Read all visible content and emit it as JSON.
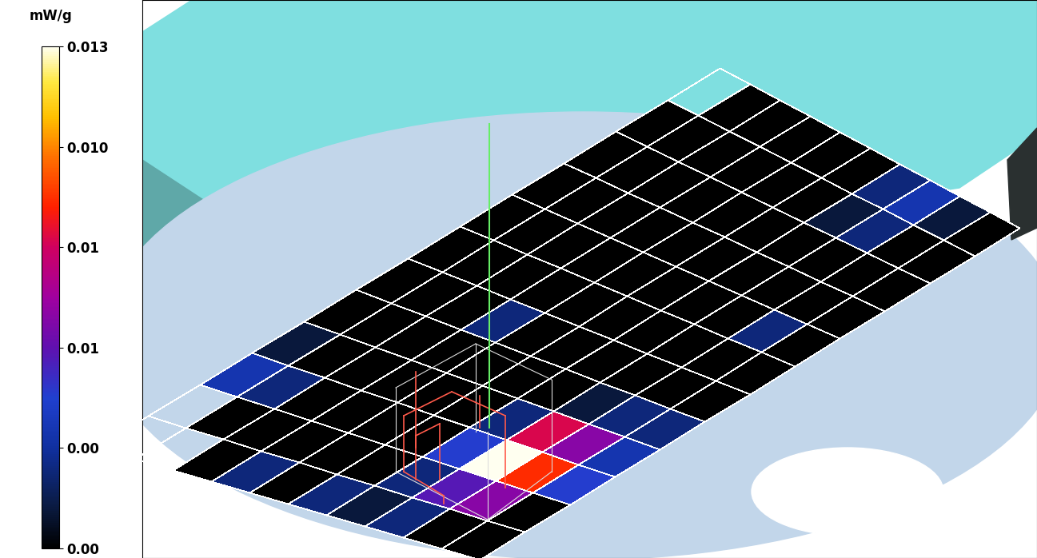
{
  "chart_data": {
    "type": "heatmap",
    "tick_labels": false,
    "cells": [
      [
        0,
        0,
        0.004,
        0.003,
        0.002,
        0,
        0,
        0,
        0,
        0,
        0,
        0
      ],
      [
        0,
        0.006,
        0.009,
        0.006,
        0.002,
        0,
        0,
        0.002,
        0,
        0,
        0,
        0.001
      ],
      [
        0.002,
        0.005,
        0.013,
        0.008,
        0.001,
        0,
        0,
        0,
        0,
        0,
        0.002,
        0.003
      ],
      [
        0.001,
        0.002,
        0.004,
        0.002,
        0,
        0,
        0,
        0,
        0,
        0,
        0.001,
        0.002
      ],
      [
        0.002,
        0,
        0,
        0,
        0,
        0,
        0,
        0,
        0,
        0,
        0,
        0
      ],
      [
        0,
        0,
        0,
        0,
        0,
        0,
        0,
        0,
        0,
        0,
        0,
        0
      ],
      [
        0.002,
        0,
        0,
        0,
        0,
        0.002,
        0,
        0,
        0,
        0,
        0,
        0
      ],
      [
        0,
        0,
        0,
        0,
        0,
        0,
        0,
        0,
        0,
        0,
        0,
        0
      ],
      [
        null,
        0,
        0.002,
        0,
        0,
        0,
        0,
        0,
        0,
        0,
        0,
        0
      ],
      [
        null,
        null,
        0.003,
        0.001,
        0,
        0,
        0,
        0,
        0,
        0,
        0,
        null
      ]
    ],
    "colorbar": {
      "label": "mW/g",
      "range": [
        0,
        0.013
      ],
      "ticks": [
        {
          "value": 0,
          "label": "0.00"
        },
        {
          "value": 0.0026,
          "label": "0.00"
        },
        {
          "value": 0.0052,
          "label": "0.01"
        },
        {
          "value": 0.0078,
          "label": "0.01"
        },
        {
          "value": 0.0104,
          "label": "0.010"
        },
        0.013
      ]
    }
  }
}
